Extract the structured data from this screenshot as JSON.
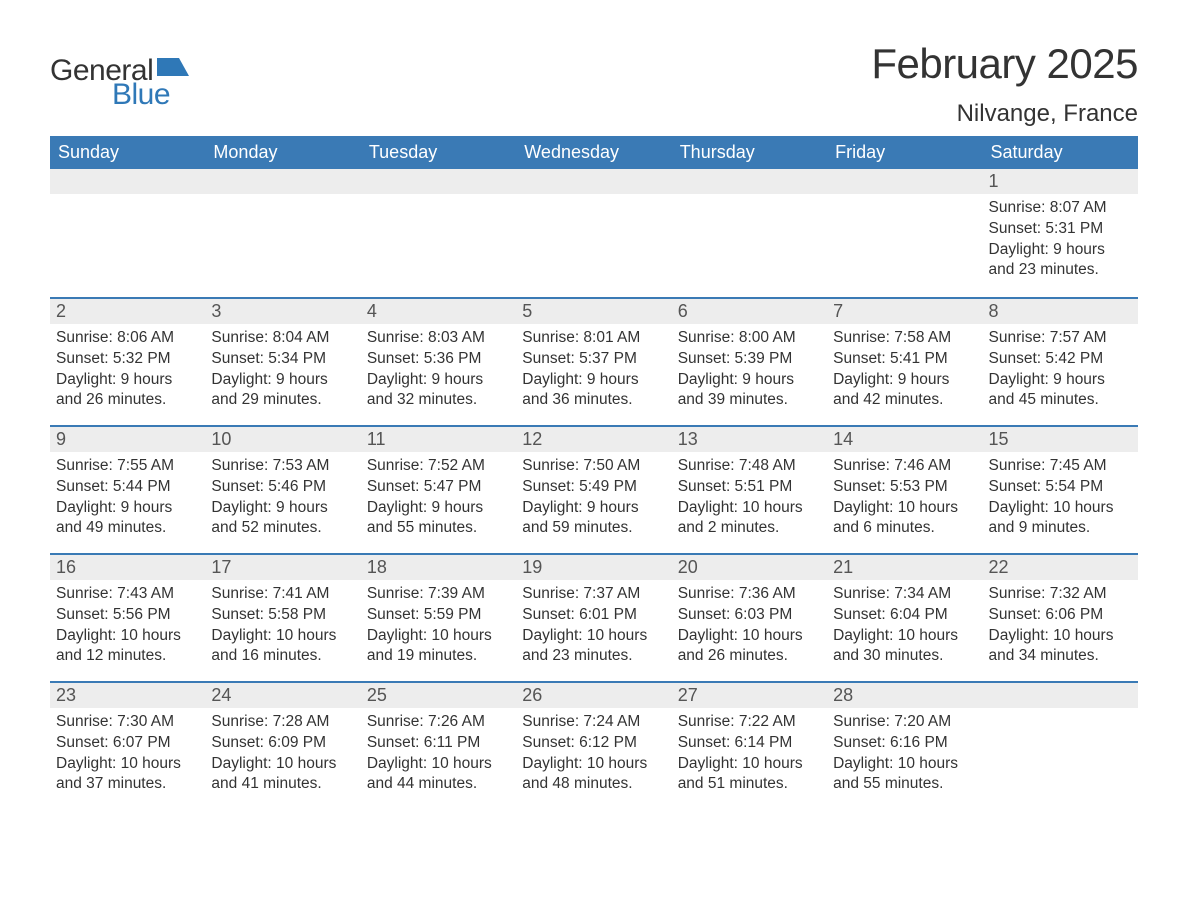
{
  "brand": {
    "word1": "General",
    "word2": "Blue",
    "flag_color": "#2f78b7",
    "text_color_dark": "#333333",
    "text_color_blue": "#2f78b7"
  },
  "title": "February 2025",
  "location": "Nilvange, France",
  "colors": {
    "header_bg": "#3a7ab5",
    "header_text": "#ffffff",
    "daynum_bg": "#ededed",
    "daynum_text": "#555555",
    "body_text": "#333333",
    "week_divider": "#3a7ab5",
    "page_bg": "#ffffff"
  },
  "fonts": {
    "title_size_pt": 32,
    "location_size_pt": 18,
    "dow_size_pt": 14,
    "daynum_size_pt": 14,
    "body_size_pt": 12
  },
  "days_of_week": [
    "Sunday",
    "Monday",
    "Tuesday",
    "Wednesday",
    "Thursday",
    "Friday",
    "Saturday"
  ],
  "labels": {
    "sunrise_prefix": "Sunrise: ",
    "sunset_prefix": "Sunset: ",
    "daylight_prefix": "Daylight: "
  },
  "weeks": [
    [
      null,
      null,
      null,
      null,
      null,
      null,
      {
        "n": "1",
        "sunrise": "8:07 AM",
        "sunset": "5:31 PM",
        "daylight": "9 hours and 23 minutes."
      }
    ],
    [
      {
        "n": "2",
        "sunrise": "8:06 AM",
        "sunset": "5:32 PM",
        "daylight": "9 hours and 26 minutes."
      },
      {
        "n": "3",
        "sunrise": "8:04 AM",
        "sunset": "5:34 PM",
        "daylight": "9 hours and 29 minutes."
      },
      {
        "n": "4",
        "sunrise": "8:03 AM",
        "sunset": "5:36 PM",
        "daylight": "9 hours and 32 minutes."
      },
      {
        "n": "5",
        "sunrise": "8:01 AM",
        "sunset": "5:37 PM",
        "daylight": "9 hours and 36 minutes."
      },
      {
        "n": "6",
        "sunrise": "8:00 AM",
        "sunset": "5:39 PM",
        "daylight": "9 hours and 39 minutes."
      },
      {
        "n": "7",
        "sunrise": "7:58 AM",
        "sunset": "5:41 PM",
        "daylight": "9 hours and 42 minutes."
      },
      {
        "n": "8",
        "sunrise": "7:57 AM",
        "sunset": "5:42 PM",
        "daylight": "9 hours and 45 minutes."
      }
    ],
    [
      {
        "n": "9",
        "sunrise": "7:55 AM",
        "sunset": "5:44 PM",
        "daylight": "9 hours and 49 minutes."
      },
      {
        "n": "10",
        "sunrise": "7:53 AM",
        "sunset": "5:46 PM",
        "daylight": "9 hours and 52 minutes."
      },
      {
        "n": "11",
        "sunrise": "7:52 AM",
        "sunset": "5:47 PM",
        "daylight": "9 hours and 55 minutes."
      },
      {
        "n": "12",
        "sunrise": "7:50 AM",
        "sunset": "5:49 PM",
        "daylight": "9 hours and 59 minutes."
      },
      {
        "n": "13",
        "sunrise": "7:48 AM",
        "sunset": "5:51 PM",
        "daylight": "10 hours and 2 minutes."
      },
      {
        "n": "14",
        "sunrise": "7:46 AM",
        "sunset": "5:53 PM",
        "daylight": "10 hours and 6 minutes."
      },
      {
        "n": "15",
        "sunrise": "7:45 AM",
        "sunset": "5:54 PM",
        "daylight": "10 hours and 9 minutes."
      }
    ],
    [
      {
        "n": "16",
        "sunrise": "7:43 AM",
        "sunset": "5:56 PM",
        "daylight": "10 hours and 12 minutes."
      },
      {
        "n": "17",
        "sunrise": "7:41 AM",
        "sunset": "5:58 PM",
        "daylight": "10 hours and 16 minutes."
      },
      {
        "n": "18",
        "sunrise": "7:39 AM",
        "sunset": "5:59 PM",
        "daylight": "10 hours and 19 minutes."
      },
      {
        "n": "19",
        "sunrise": "7:37 AM",
        "sunset": "6:01 PM",
        "daylight": "10 hours and 23 minutes."
      },
      {
        "n": "20",
        "sunrise": "7:36 AM",
        "sunset": "6:03 PM",
        "daylight": "10 hours and 26 minutes."
      },
      {
        "n": "21",
        "sunrise": "7:34 AM",
        "sunset": "6:04 PM",
        "daylight": "10 hours and 30 minutes."
      },
      {
        "n": "22",
        "sunrise": "7:32 AM",
        "sunset": "6:06 PM",
        "daylight": "10 hours and 34 minutes."
      }
    ],
    [
      {
        "n": "23",
        "sunrise": "7:30 AM",
        "sunset": "6:07 PM",
        "daylight": "10 hours and 37 minutes."
      },
      {
        "n": "24",
        "sunrise": "7:28 AM",
        "sunset": "6:09 PM",
        "daylight": "10 hours and 41 minutes."
      },
      {
        "n": "25",
        "sunrise": "7:26 AM",
        "sunset": "6:11 PM",
        "daylight": "10 hours and 44 minutes."
      },
      {
        "n": "26",
        "sunrise": "7:24 AM",
        "sunset": "6:12 PM",
        "daylight": "10 hours and 48 minutes."
      },
      {
        "n": "27",
        "sunrise": "7:22 AM",
        "sunset": "6:14 PM",
        "daylight": "10 hours and 51 minutes."
      },
      {
        "n": "28",
        "sunrise": "7:20 AM",
        "sunset": "6:16 PM",
        "daylight": "10 hours and 55 minutes."
      },
      null
    ]
  ]
}
